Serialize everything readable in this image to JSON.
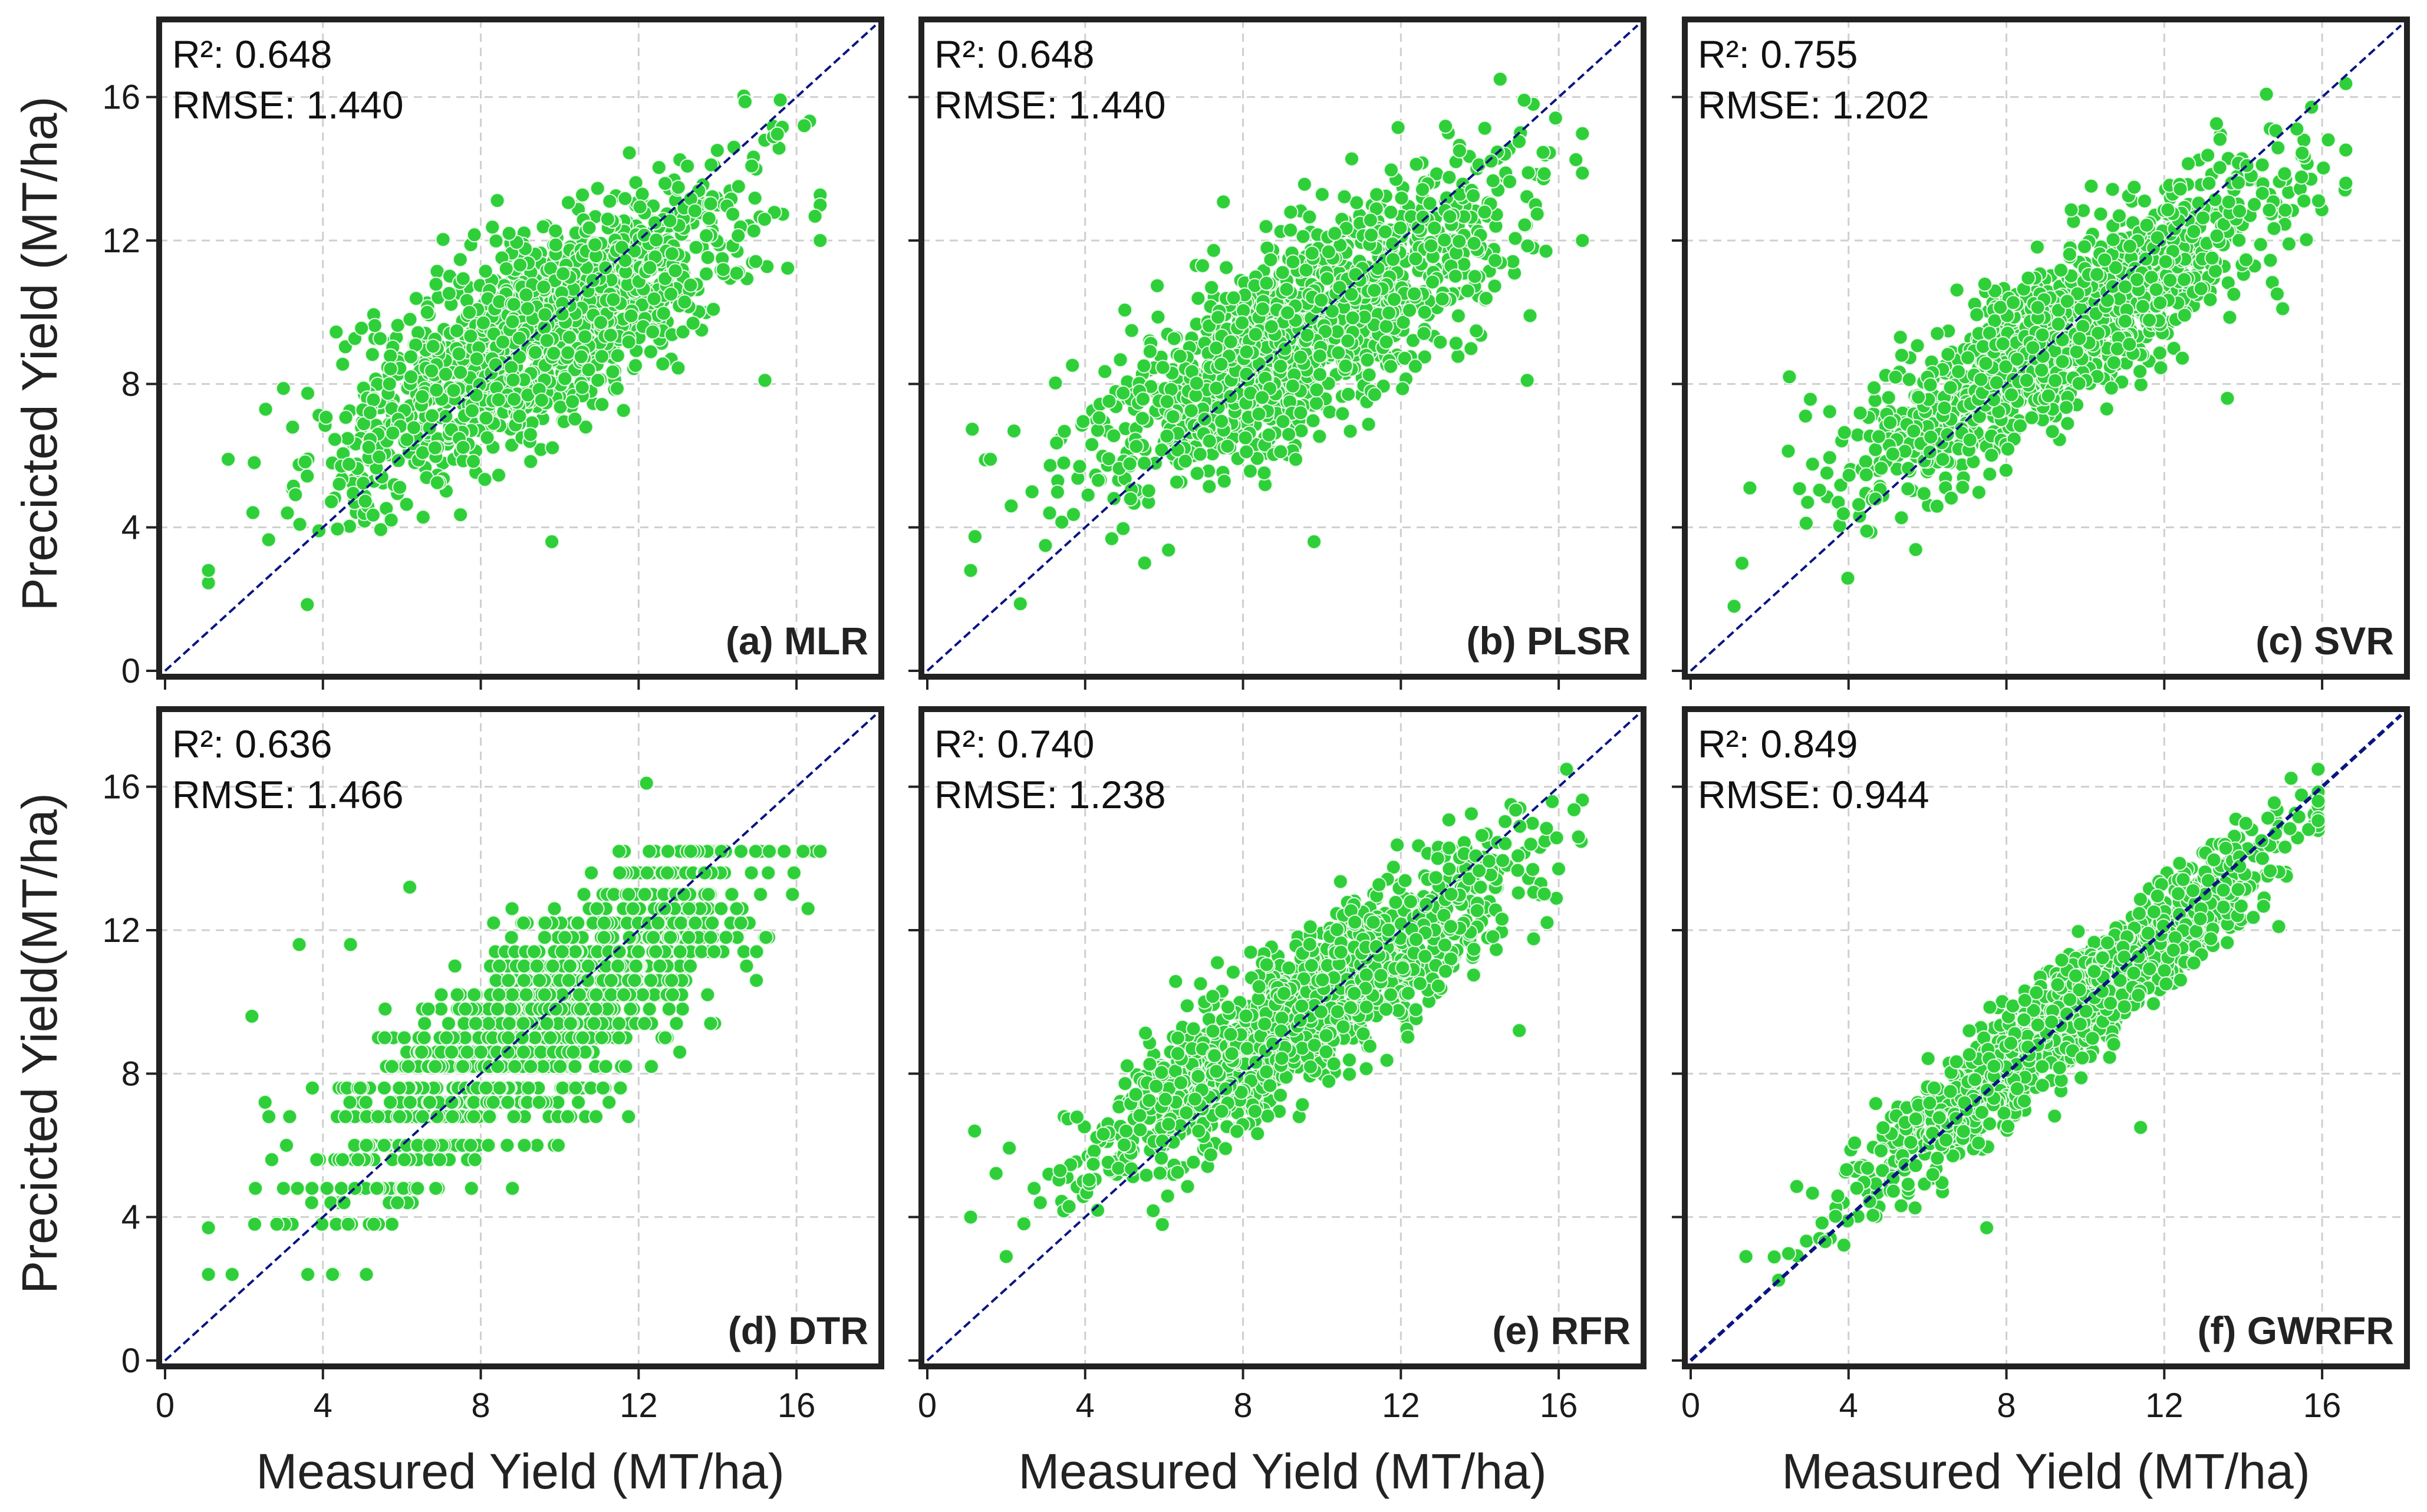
{
  "figure": {
    "y_axis_titles": [
      "Precicted Yield (MT/ha)",
      "Precicted Yield(MT/ha)"
    ],
    "x_axis_title": "Measured Yield (MT/ha)"
  },
  "colors": {
    "points": "#2fcf3a",
    "point_edge": "#e9fbe9",
    "identity_line": "#0a1580",
    "frame": "#222222",
    "grid": "#cfcfcf"
  },
  "chart_data": [
    {
      "type": "scatter",
      "panel_label": "(a) MLR",
      "r2_text": "R²: 0.648",
      "rmse_text": "RMSE: 1.440",
      "r2": 0.648,
      "rmse": 1.44,
      "x_range": [
        0,
        18
      ],
      "y_range": [
        0,
        18
      ],
      "x_ticks": [
        0,
        4,
        8,
        12,
        16
      ],
      "y_ticks": [
        0,
        4,
        8,
        12,
        16
      ],
      "x_tick_labels": [
        "0",
        "4",
        "8",
        "12",
        "16"
      ],
      "y_tick_labels": [
        "0",
        "4",
        "8",
        "12",
        "16"
      ],
      "xlabel": "Measured Yield (MT/ha)",
      "ylabel": "Precicted Yield (MT/ha)",
      "identity_line": true,
      "grid": true,
      "points_summary": {
        "n": 1300,
        "x_min": 1.1,
        "x_max": 16.6,
        "x_mean": 9.5,
        "x_sd": 2.6,
        "slope": 0.64,
        "intercept": 3.4,
        "noise_sd": 1.4
      },
      "outliers": [
        [
          1.1,
          2.8
        ],
        [
          16.6,
          12.0
        ],
        [
          9.8,
          3.6
        ],
        [
          15.2,
          8.1
        ],
        [
          3.1,
          4.4
        ],
        [
          1.6,
          5.9
        ]
      ]
    },
    {
      "type": "scatter",
      "panel_label": "(b) PLSR",
      "r2_text": "R²: 0.648",
      "rmse_text": "RMSE: 1.440",
      "r2": 0.648,
      "rmse": 1.44,
      "x_range": [
        0,
        18
      ],
      "y_range": [
        0,
        18
      ],
      "x_ticks": [
        0,
        4,
        8,
        12,
        16
      ],
      "y_ticks": [
        0,
        4,
        8,
        12,
        16
      ],
      "x_tick_labels": [
        "0",
        "4",
        "8",
        "12",
        "16"
      ],
      "y_tick_labels": [
        "0",
        "4",
        "8",
        "12",
        "16"
      ],
      "xlabel": "Measured Yield (MT/ha)",
      "ylabel": "Precicted Yield (MT/ha)",
      "identity_line": true,
      "grid": true,
      "points_summary": {
        "n": 1300,
        "x_min": 1.1,
        "x_max": 16.6,
        "x_mean": 9.5,
        "x_sd": 2.6,
        "slope": 0.64,
        "intercept": 3.4,
        "noise_sd": 1.4
      },
      "outliers": [
        [
          1.1,
          2.8
        ],
        [
          16.6,
          12.0
        ],
        [
          9.8,
          3.6
        ],
        [
          15.2,
          8.1
        ],
        [
          3.1,
          4.4
        ],
        [
          1.6,
          5.9
        ]
      ]
    },
    {
      "type": "scatter",
      "panel_label": "(c) SVR",
      "r2_text": "R²: 0.755",
      "rmse_text": "RMSE: 1.202",
      "r2": 0.755,
      "rmse": 1.202,
      "x_range": [
        0,
        18
      ],
      "y_range": [
        0,
        18
      ],
      "x_ticks": [
        0,
        4,
        8,
        12,
        16
      ],
      "y_ticks": [
        0,
        4,
        8,
        12,
        16
      ],
      "x_tick_labels": [
        "0",
        "4",
        "8",
        "12",
        "16"
      ],
      "y_tick_labels": [
        "0",
        "4",
        "8",
        "12",
        "16"
      ],
      "xlabel": "Measured Yield (MT/ha)",
      "ylabel": "Precicted Yield (MT/ha)",
      "identity_line": true,
      "grid": true,
      "points_summary": {
        "n": 1300,
        "x_min": 1.1,
        "x_max": 16.6,
        "x_mean": 9.5,
        "x_sd": 2.6,
        "slope": 0.72,
        "intercept": 2.6,
        "noise_sd": 1.1
      },
      "outliers": [
        [
          1.3,
          3.0
        ],
        [
          16.6,
          13.6
        ],
        [
          15.0,
          10.1
        ],
        [
          1.5,
          5.1
        ],
        [
          2.5,
          8.2
        ],
        [
          13.6,
          7.6
        ]
      ]
    },
    {
      "type": "scatter",
      "panel_label": "(d) DTR",
      "r2_text": "R²: 0.636",
      "rmse_text": "RMSE: 1.466",
      "r2": 0.636,
      "rmse": 1.466,
      "x_range": [
        0,
        18
      ],
      "y_range": [
        0,
        18
      ],
      "x_ticks": [
        0,
        4,
        8,
        12,
        16
      ],
      "y_ticks": [
        0,
        4,
        8,
        12,
        16
      ],
      "x_tick_labels": [
        "0",
        "4",
        "8",
        "12",
        "16"
      ],
      "y_tick_labels": [
        "0",
        "4",
        "8",
        "12",
        "16"
      ],
      "xlabel": "Measured Yield (MT/ha)",
      "ylabel": "Precicted Yield(MT/ha)",
      "identity_line": true,
      "grid": true,
      "quantized": true,
      "points_summary": {
        "n": 1300,
        "x_min": 1.1,
        "x_max": 16.6,
        "x_mean": 9.5,
        "x_sd": 2.6,
        "slope": 0.74,
        "intercept": 2.4,
        "noise_sd": 1.35
      },
      "outliers": [
        [
          12.2,
          16.1
        ],
        [
          6.2,
          13.2
        ],
        [
          3.4,
          11.6
        ],
        [
          4.7,
          11.6
        ],
        [
          2.2,
          9.6
        ],
        [
          1.1,
          3.7
        ],
        [
          1.7,
          2.4
        ]
      ]
    },
    {
      "type": "scatter",
      "panel_label": "(e) RFR",
      "r2_text": "R²: 0.740",
      "rmse_text": "RMSE: 1.238",
      "r2": 0.74,
      "rmse": 1.238,
      "x_range": [
        0,
        18
      ],
      "y_range": [
        0,
        18
      ],
      "x_ticks": [
        0,
        4,
        8,
        12,
        16
      ],
      "y_ticks": [
        0,
        4,
        8,
        12,
        16
      ],
      "x_tick_labels": [
        "0",
        "4",
        "8",
        "12",
        "16"
      ],
      "y_tick_labels": [
        "0",
        "4",
        "8",
        "12",
        "16"
      ],
      "xlabel": "Measured Yield (MT/ha)",
      "ylabel": "Precicted Yield(MT/ha)",
      "identity_line": true,
      "grid": true,
      "points_summary": {
        "n": 1300,
        "x_min": 1.1,
        "x_max": 16.6,
        "x_mean": 9.5,
        "x_sd": 2.6,
        "slope": 0.75,
        "intercept": 2.5,
        "noise_sd": 1.05
      },
      "outliers": [
        [
          1.2,
          6.4
        ],
        [
          16.5,
          14.6
        ],
        [
          15.0,
          9.2
        ],
        [
          1.1,
          4.0
        ],
        [
          2.0,
          2.9
        ]
      ]
    },
    {
      "type": "scatter",
      "panel_label": "(f) GWRFR",
      "r2_text": "R²: 0.849",
      "rmse_text": "RMSE: 0.944",
      "r2": 0.849,
      "rmse": 0.944,
      "x_range": [
        0,
        18
      ],
      "y_range": [
        0,
        18
      ],
      "x_ticks": [
        0,
        4,
        8,
        12,
        16
      ],
      "y_ticks": [
        0,
        4,
        8,
        12,
        16
      ],
      "x_tick_labels": [
        "0",
        "4",
        "8",
        "12",
        "16"
      ],
      "y_tick_labels": [
        "0",
        "4",
        "8",
        "12",
        "16"
      ],
      "xlabel": "Measured Yield (MT/ha)",
      "ylabel": "Precicted Yield(MT/ha)",
      "identity_line": true,
      "grid": true,
      "points_summary": {
        "n": 1300,
        "x_min": 1.4,
        "x_max": 15.9,
        "x_mean": 9.5,
        "x_sd": 2.6,
        "slope": 0.9,
        "intercept": 1.0,
        "noise_sd": 0.75
      },
      "outliers": [
        [
          1.4,
          2.9
        ],
        [
          15.9,
          15.6
        ],
        [
          14.9,
          12.1
        ],
        [
          7.5,
          3.7
        ],
        [
          11.4,
          6.5
        ]
      ]
    }
  ]
}
